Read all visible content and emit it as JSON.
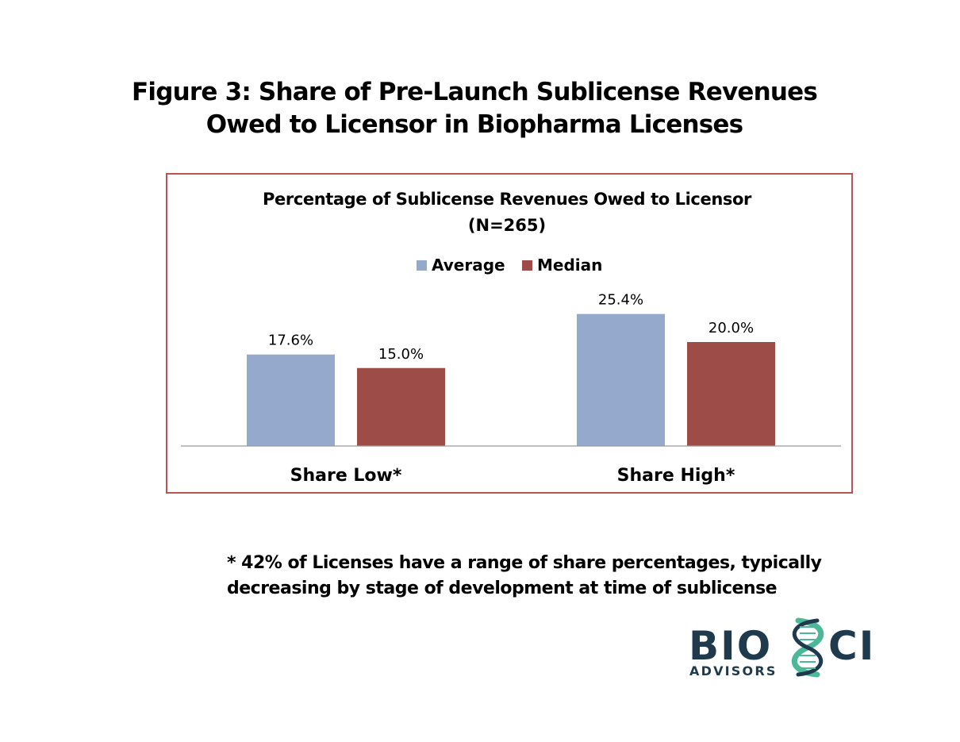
{
  "figure_title_lines": [
    "Figure 3:  Share of Pre-Launch Sublicense Revenues",
    "Owed to Licensor in Biopharma Licenses"
  ],
  "chart_data": {
    "type": "bar",
    "title_lines": [
      "Percentage of Sublicense Revenues Owed to Licensor",
      "(N=265)"
    ],
    "categories": [
      "Share Low*",
      "Share High*"
    ],
    "series": [
      {
        "name": "Average",
        "values": [
          17.6,
          25.4
        ],
        "labels": [
          "17.6%",
          "25.4%"
        ],
        "color": "#95a9cd"
      },
      {
        "name": "Median",
        "values": [
          15.0,
          20.0
        ],
        "labels": [
          "15.0%",
          "20.0%"
        ],
        "color": "#9d4c48"
      }
    ],
    "ylim": [
      0,
      30
    ],
    "legend_position": "top-center",
    "grid": false
  },
  "footnote_lines": [
    "* 42% of Licenses have a range of share percentages, typically",
    "decreasing by stage of development at time of sublicense"
  ],
  "logo": {
    "word_left": "BIO",
    "word_right": "CI",
    "subtitle": "ADVISORS",
    "dark_color": "#1f3a4d",
    "accent_color": "#4bb89a"
  }
}
